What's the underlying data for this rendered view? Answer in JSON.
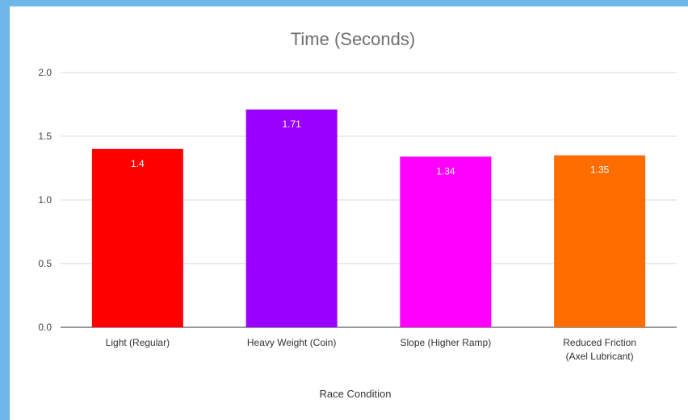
{
  "chart_data": {
    "type": "bar",
    "title": "Time (Seconds)",
    "xlabel": "Race Condition",
    "ylabel": "",
    "ylim": [
      0,
      2.0
    ],
    "yticks": [
      "0.0",
      "0.5",
      "1.0",
      "1.5",
      "2.0"
    ],
    "grid": true,
    "categories": [
      [
        "Light (Regular)"
      ],
      [
        "Heavy Weight  (Coin)"
      ],
      [
        "Slope (Higher Ramp)"
      ],
      [
        "Reduced Friction",
        "(Axel Lubricant)"
      ]
    ],
    "values": [
      1.4,
      1.71,
      1.34,
      1.35
    ],
    "value_labels": [
      "1.4",
      "1.71",
      "1.34",
      "1.35"
    ],
    "colors": [
      "#ff0000",
      "#9900ff",
      "#ff00ff",
      "#ff6d01"
    ]
  }
}
